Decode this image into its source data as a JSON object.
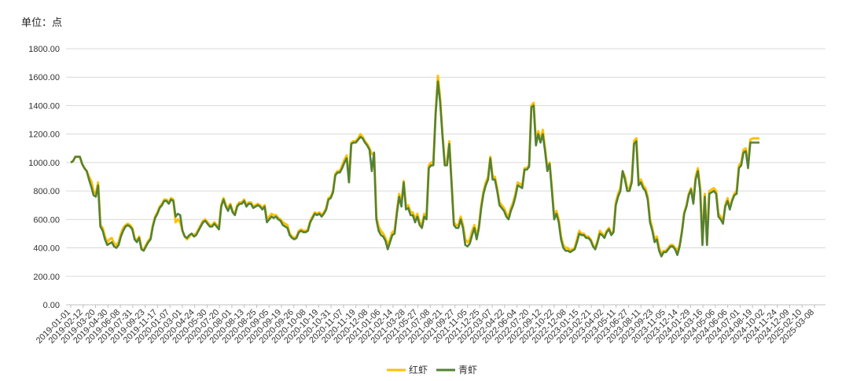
{
  "chart_data": {
    "type": "line",
    "unit_label": "单位：点",
    "ylim": [
      0,
      1800
    ],
    "yticks": [
      "0.00",
      "200.00",
      "400.00",
      "600.00",
      "800.00",
      "1000.00",
      "1200.00",
      "1400.00",
      "1600.00",
      "1800.00"
    ],
    "grid": true,
    "legend_position": "bottom",
    "x_tick_labels": [
      "2019-01-01",
      "2019-02-12",
      "2019-03-20",
      "2019-04-30",
      "2019-06-08",
      "2019-07-31",
      "2019-09-23",
      "2019-11-17",
      "2020-01-07",
      "2020-03-01",
      "2020-04-24",
      "2020-05-30",
      "2020-07-20",
      "2020-08-01",
      "2020-08-13",
      "2020-08-25",
      "2020-09-05",
      "2020-09-19",
      "2020-09-26",
      "2020-10-08",
      "2020-10-19",
      "2020-10-31",
      "2020-11-07",
      "2020-11-19",
      "2020-12-08",
      "2021-01-06",
      "2021-02-14",
      "2021-03-28",
      "2021-05-27",
      "2021-07-08",
      "2021-08-21",
      "2021-09-27",
      "2021-11-05",
      "2021-12-25",
      "2022-03-07",
      "2022-04-22",
      "2022-06-04",
      "2022-07-20",
      "2022-09-12",
      "2022-10-22",
      "2022-12-08",
      "2023-01-15",
      "2023-02-21",
      "2023-04-02",
      "2023-05-11",
      "2023-06-27",
      "2023-08-11",
      "2023-09-23",
      "2023-11-05",
      "2023-12-14",
      "2024-01-29",
      "2024-03-16",
      "2024-05-06",
      "2024-06-06",
      "2024-07-01",
      "2024-08-19",
      "2024-10-02",
      "2024-11-24",
      "2024-12-09",
      "2025-02-10",
      "2025-03-08"
    ],
    "series": [
      {
        "name": "红虾",
        "color": "#FFC000",
        "values": [
          1000,
          1010,
          1040,
          1040,
          1040,
          990,
          960,
          940,
          900,
          870,
          800,
          780,
          860,
          560,
          540,
          480,
          440,
          460,
          470,
          430,
          420,
          440,
          500,
          540,
          560,
          570,
          560,
          540,
          470,
          450,
          480,
          400,
          390,
          420,
          450,
          470,
          560,
          620,
          650,
          690,
          710,
          740,
          740,
          720,
          750,
          740,
          580,
          600,
          580,
          520,
          480,
          460,
          480,
          500,
          490,
          500,
          530,
          560,
          590,
          600,
          580,
          560,
          560,
          580,
          560,
          540,
          700,
          750,
          700,
          680,
          710,
          660,
          640,
          700,
          720,
          720,
          740,
          700,
          720,
          720,
          690,
          700,
          710,
          700,
          680,
          700,
          600,
          620,
          640,
          630,
          630,
          610,
          600,
          580,
          570,
          560,
          500,
          480,
          470,
          480,
          520,
          530,
          520,
          520,
          530,
          590,
          620,
          650,
          640,
          650,
          630,
          650,
          680,
          750,
          760,
          800,
          920,
          940,
          940,
          980,
          1020,
          1050,
          870,
          1140,
          1150,
          1150,
          1170,
          1200,
          1180,
          1150,
          1130,
          1100,
          1060,
          1060,
          620,
          550,
          520,
          500,
          470,
          420,
          460,
          510,
          520,
          660,
          780,
          710,
          870,
          690,
          700,
          650,
          650,
          600,
          640,
          580,
          560,
          640,
          620,
          980,
          1000,
          1000,
          1350,
          1610,
          1450,
          1200,
          1000,
          1000,
          1150,
          860,
          580,
          560,
          560,
          620,
          560,
          460,
          440,
          460,
          520,
          560,
          480,
          560,
          700,
          800,
          860,
          900,
          1040,
          900,
          900,
          820,
          720,
          700,
          680,
          640,
          620,
          680,
          720,
          780,
          860,
          850,
          840,
          960,
          960,
          980,
          1400,
          1420,
          1140,
          1220,
          1160,
          1230,
          1100,
          960,
          1000,
          820,
          620,
          660,
          600,
          480,
          420,
          400,
          400,
          380,
          390,
          400,
          460,
          520,
          500,
          500,
          480,
          480,
          460,
          420,
          400,
          450,
          520,
          500,
          480,
          520,
          540,
          500,
          520,
          720,
          780,
          820,
          940,
          900,
          820,
          820,
          880,
          1150,
          1170,
          860,
          880,
          840,
          820,
          760,
          600,
          540,
          460,
          480,
          400,
          360,
          380,
          380,
          400,
          420,
          420,
          400,
          380,
          420,
          520,
          650,
          700,
          780,
          820,
          720,
          900,
          960,
          820,
          440,
          780,
          440,
          800,
          810,
          820,
          800,
          640,
          620,
          580,
          700,
          750,
          680,
          740,
          780,
          800,
          980,
          1000,
          1090,
          1100,
          980,
          1160,
          1170,
          1170,
          1170,
          1170
        ]
      },
      {
        "name": "青虾",
        "color": "#548235",
        "values": [
          1000,
          1010,
          1040,
          1040,
          1040,
          990,
          960,
          940,
          880,
          830,
          770,
          760,
          840,
          550,
          520,
          460,
          420,
          430,
          440,
          410,
          400,
          420,
          480,
          520,
          550,
          560,
          550,
          530,
          460,
          440,
          470,
          390,
          380,
          410,
          440,
          460,
          550,
          610,
          640,
          680,
          700,
          730,
          730,
          710,
          740,
          730,
          620,
          640,
          630,
          520,
          480,
          470,
          490,
          500,
          480,
          490,
          520,
          550,
          580,
          590,
          570,
          550,
          550,
          570,
          550,
          530,
          690,
          740,
          690,
          660,
          700,
          650,
          630,
          690,
          710,
          710,
          730,
          690,
          710,
          710,
          680,
          690,
          700,
          690,
          670,
          690,
          580,
          600,
          620,
          610,
          620,
          600,
          590,
          560,
          550,
          540,
          490,
          470,
          460,
          470,
          510,
          520,
          510,
          510,
          520,
          580,
          610,
          640,
          630,
          640,
          620,
          640,
          670,
          740,
          750,
          790,
          910,
          930,
          930,
          960,
          1000,
          1030,
          860,
          1130,
          1140,
          1140,
          1160,
          1180,
          1170,
          1140,
          1120,
          1090,
          940,
          1070,
          600,
          520,
          490,
          480,
          450,
          390,
          440,
          490,
          500,
          640,
          760,
          690,
          860,
          670,
          680,
          630,
          630,
          580,
          620,
          560,
          540,
          620,
          600,
          960,
          980,
          980,
          1340,
          1570,
          1420,
          1190,
          980,
          980,
          1130,
          850,
          560,
          540,
          540,
          600,
          540,
          420,
          410,
          430,
          490,
          540,
          460,
          540,
          680,
          780,
          840,
          880,
          1030,
          880,
          880,
          800,
          700,
          680,
          660,
          620,
          600,
          660,
          700,
          760,
          840,
          830,
          820,
          950,
          950,
          970,
          1390,
          1400,
          1120,
          1200,
          1140,
          1200,
          1080,
          940,
          990,
          800,
          600,
          640,
          580,
          460,
          400,
          380,
          380,
          370,
          380,
          390,
          440,
          500,
          490,
          490,
          470,
          470,
          450,
          410,
          390,
          440,
          500,
          490,
          470,
          510,
          530,
          490,
          510,
          700,
          760,
          800,
          940,
          880,
          800,
          800,
          860,
          1130,
          1150,
          840,
          860,
          820,
          800,
          740,
          580,
          520,
          440,
          460,
          380,
          340,
          370,
          370,
          390,
          410,
          410,
          390,
          350,
          410,
          510,
          640,
          690,
          770,
          810,
          710,
          880,
          940,
          800,
          420,
          760,
          420,
          780,
          790,
          800,
          780,
          620,
          600,
          570,
          690,
          730,
          670,
          730,
          770,
          780,
          960,
          980,
          1070,
          1080,
          960,
          1140,
          1140,
          1140,
          1140,
          1140
        ]
      }
    ]
  }
}
